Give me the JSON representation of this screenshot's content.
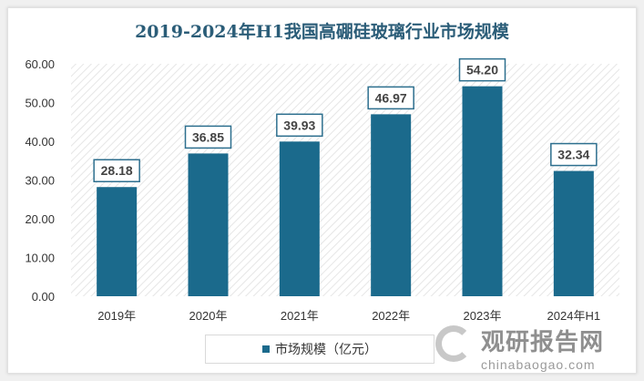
{
  "chart_data": {
    "type": "bar",
    "title": "2019-2024年H1我国高硼硅玻璃行业市场规模",
    "categories": [
      "2019年",
      "2020年",
      "2021年",
      "2022年",
      "2023年",
      "2024年H1"
    ],
    "series": [
      {
        "name": "市场规模（亿元）",
        "values": [
          28.18,
          36.85,
          39.93,
          46.97,
          54.2,
          32.34
        ]
      }
    ],
    "data_labels": [
      "28.18",
      "36.85",
      "39.93",
      "46.97",
      "54.20",
      "32.34"
    ],
    "yticks": [
      "0.00",
      "10.00",
      "20.00",
      "30.00",
      "40.00",
      "50.00",
      "60.00"
    ],
    "ylim": [
      0,
      60
    ],
    "grid": false,
    "legend_position": "bottom",
    "colors": {
      "bar": "#1b6a8c",
      "title": "#2b5d78"
    }
  },
  "watermark": {
    "cn": "观研报告网",
    "en": "chinabaogao.com"
  }
}
